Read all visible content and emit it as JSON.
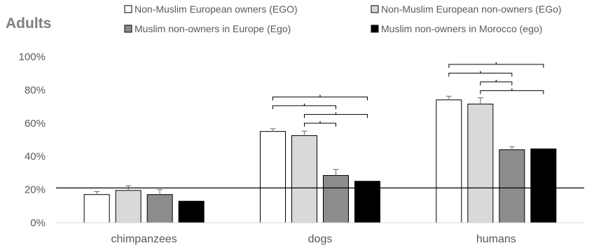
{
  "chart_data": {
    "type": "bar",
    "title": "Adults",
    "categories": [
      "chimpanzees",
      "dogs",
      "humans"
    ],
    "ylim": [
      0,
      100
    ],
    "yticks": [
      "0%",
      "20%",
      "40%",
      "60%",
      "80%",
      "100%"
    ],
    "reference_line": 21,
    "grid": false,
    "legend_position": "top",
    "series": [
      {
        "name": "Non-Muslim European owners (EGO)",
        "color": "#ffffff",
        "values": [
          17,
          55,
          74
        ],
        "error": [
          1.8,
          1.6,
          2.2
        ]
      },
      {
        "name": "Non-Muslim European non-owners (EGo)",
        "color": "#d9d9d9",
        "values": [
          19.5,
          52.5,
          71.5
        ],
        "error": [
          2.8,
          2.7,
          3.8
        ]
      },
      {
        "name": "Muslim non-owners in Europe (Ego)",
        "color": "#8c8c8c",
        "values": [
          17,
          28.5,
          44
        ],
        "error": [
          3.0,
          3.6,
          1.8
        ]
      },
      {
        "name": "Muslim non-owners in Morocco (ego)",
        "color": "#000000",
        "values": [
          13,
          25,
          44.5
        ],
        "error": [
          0,
          0,
          0
        ]
      }
    ],
    "significance_brackets": [
      {
        "category": "dogs",
        "pairs": [
          [
            0,
            3
          ],
          [
            0,
            2
          ],
          [
            1,
            3
          ],
          [
            1,
            2
          ]
        ]
      },
      {
        "category": "humans",
        "pairs": [
          [
            0,
            3
          ],
          [
            0,
            2
          ],
          [
            1,
            2
          ],
          [
            1,
            3
          ]
        ]
      }
    ]
  }
}
